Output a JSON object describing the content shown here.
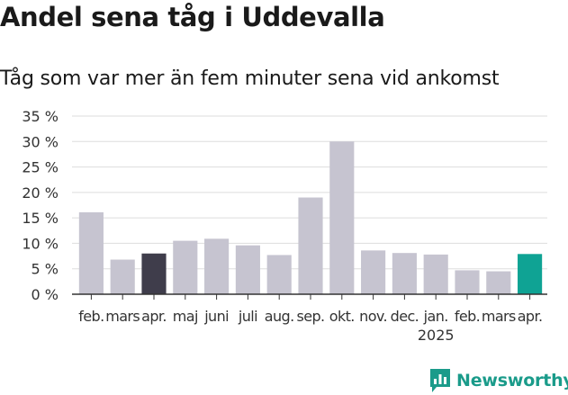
{
  "chart_data": {
    "type": "bar",
    "title": "Andel sena tåg i Uddevalla",
    "subtitle": "Tåg som var mer än fem minuter sena vid ankomst",
    "categories": [
      "feb.",
      "mars",
      "apr.",
      "maj",
      "juni",
      "juli",
      "aug.",
      "sep.",
      "okt.",
      "nov.",
      "dec.",
      "jan.",
      "feb.",
      "mars",
      "apr."
    ],
    "year_labels": [
      {
        "index": 11,
        "label": "2025"
      }
    ],
    "values": [
      16.1,
      6.8,
      8.0,
      10.5,
      10.9,
      9.6,
      7.7,
      19.0,
      30.0,
      8.6,
      8.1,
      7.8,
      4.7,
      4.5,
      7.9
    ],
    "highlight": {
      "2": "dark",
      "14": "accent"
    },
    "yticks": [
      "0 %",
      "5 %",
      "10 %",
      "15 %",
      "20 %",
      "25 %",
      "30 %",
      "35 %"
    ],
    "ylim": [
      0,
      35
    ],
    "grid": true,
    "colors": {
      "default": "#c6c4d0",
      "dark": "#3f3d4b",
      "accent": "#0fa394",
      "grid": "#dddddd",
      "axis": "#333333"
    }
  },
  "brand": {
    "name": "Newsworthy",
    "icon": "bar-chart-icon",
    "color": "#1a9b8a"
  }
}
